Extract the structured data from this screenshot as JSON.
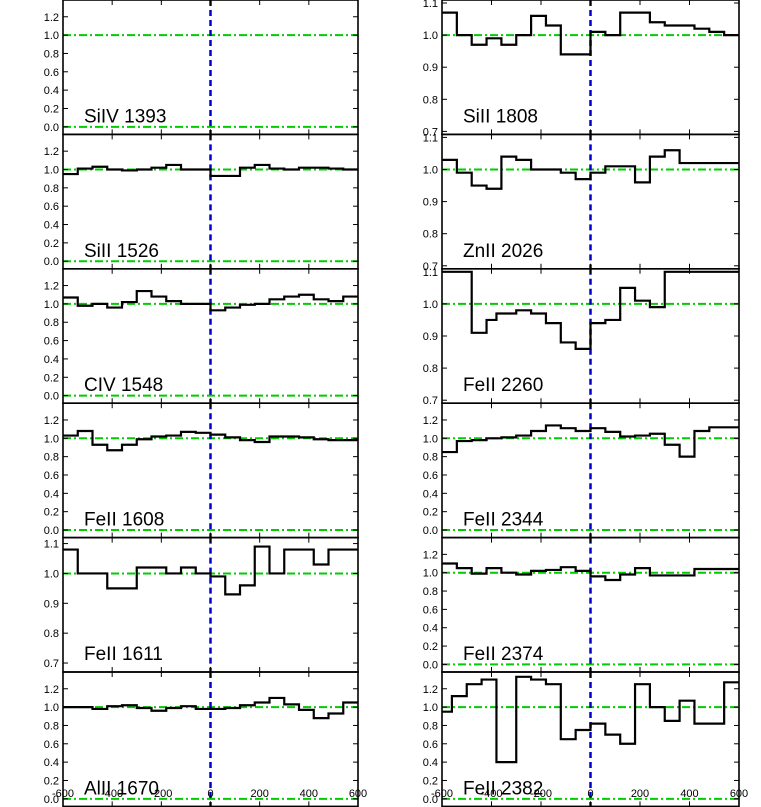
{
  "chart_data": {
    "type": "line",
    "colors": {
      "spectrum": "#000000",
      "zero_velocity": "#0000cc",
      "reference": "#00cc00"
    },
    "x_ticks": [
      "-600",
      "-400",
      "-200",
      "0",
      "200",
      "400",
      "600"
    ],
    "x_values": [
      -600,
      -400,
      -200,
      0,
      200,
      400,
      600
    ],
    "panels": [
      {
        "column": "left",
        "row": 0,
        "label": "SiIV 1393",
        "ylim": [
          -0.05,
          1.35
        ],
        "y_ticks": [
          "0.0",
          "0.2",
          "0.4",
          "0.6",
          "0.8",
          "1.0",
          "1.2"
        ],
        "y_tick_values": [
          0,
          0.2,
          0.4,
          0.6,
          0.8,
          1.0,
          1.2
        ],
        "ref_lines": [
          0.0,
          1.0
        ],
        "x": [],
        "y": []
      },
      {
        "column": "left",
        "row": 1,
        "label": "SiII 1526",
        "ylim": [
          -0.05,
          1.35
        ],
        "y_ticks": [
          "0.0",
          "0.2",
          "0.4",
          "0.6",
          "0.8",
          "1.0",
          "1.2"
        ],
        "y_tick_values": [
          0,
          0.2,
          0.4,
          0.6,
          0.8,
          1.0,
          1.2
        ],
        "ref_lines": [
          0.0,
          1.0
        ],
        "x": [
          -600,
          -540,
          -480,
          -420,
          -360,
          -300,
          -240,
          -180,
          -120,
          -60,
          0,
          60,
          120,
          180,
          240,
          300,
          360,
          420,
          480,
          540,
          600
        ],
        "y": [
          0.95,
          1.01,
          1.03,
          1.0,
          0.99,
          1.0,
          1.02,
          1.05,
          1.0,
          1.0,
          0.93,
          0.93,
          1.02,
          1.05,
          1.01,
          1.0,
          1.02,
          1.02,
          1.01,
          1.0,
          1.0
        ]
      },
      {
        "column": "left",
        "row": 2,
        "label": "CIV 1548",
        "ylim": [
          -0.05,
          1.35
        ],
        "y_ticks": [
          "0.0",
          "0.2",
          "0.4",
          "0.6",
          "0.8",
          "1.0",
          "1.2"
        ],
        "y_tick_values": [
          0,
          0.2,
          0.4,
          0.6,
          0.8,
          1.0,
          1.2
        ],
        "ref_lines": [
          0.0,
          1.0
        ],
        "x": [
          -600,
          -540,
          -480,
          -420,
          -360,
          -300,
          -240,
          -180,
          -120,
          -60,
          0,
          60,
          120,
          180,
          240,
          300,
          360,
          420,
          480,
          540,
          600
        ],
        "y": [
          1.07,
          0.98,
          1.0,
          0.96,
          1.02,
          1.14,
          1.08,
          1.03,
          1.0,
          1.0,
          0.93,
          0.96,
          0.99,
          1.0,
          1.05,
          1.08,
          1.1,
          1.05,
          1.03,
          1.08,
          1.08
        ]
      },
      {
        "column": "left",
        "row": 3,
        "label": "FeII 1608",
        "ylim": [
          -0.05,
          1.35
        ],
        "y_ticks": [
          "0.0",
          "0.2",
          "0.4",
          "0.6",
          "0.8",
          "1.0",
          "1.2"
        ],
        "y_tick_values": [
          0,
          0.2,
          0.4,
          0.6,
          0.8,
          1.0,
          1.2
        ],
        "ref_lines": [
          0.0,
          1.0
        ],
        "x": [
          -600,
          -540,
          -480,
          -420,
          -360,
          -300,
          -240,
          -180,
          -120,
          -60,
          0,
          60,
          120,
          180,
          240,
          300,
          360,
          420,
          480,
          540,
          600
        ],
        "y": [
          1.03,
          1.08,
          0.93,
          0.87,
          0.93,
          0.99,
          1.02,
          1.03,
          1.07,
          1.06,
          1.04,
          1.01,
          0.98,
          0.96,
          1.02,
          1.02,
          1.01,
          0.99,
          0.98,
          0.98,
          0.98
        ]
      },
      {
        "column": "left",
        "row": 4,
        "label": "FeII 1611",
        "ylim": [
          0.68,
          1.11
        ],
        "y_ticks": [
          "0.7",
          "0.8",
          "0.9",
          "1.0",
          "1.1"
        ],
        "y_tick_values": [
          0.7,
          0.8,
          0.9,
          1.0,
          1.1
        ],
        "ref_lines": [
          1.0
        ],
        "x": [
          -600,
          -540,
          -480,
          -420,
          -360,
          -300,
          -240,
          -180,
          -120,
          -60,
          0,
          60,
          120,
          180,
          240,
          300,
          360,
          420,
          480,
          540,
          600
        ],
        "y": [
          1.08,
          1.0,
          1.0,
          0.95,
          0.95,
          1.02,
          1.02,
          1.0,
          1.02,
          1.0,
          0.99,
          0.93,
          0.96,
          1.09,
          1.0,
          1.08,
          1.08,
          1.03,
          1.08,
          1.08,
          1.08
        ]
      },
      {
        "column": "left",
        "row": 5,
        "label": "AlII 1670",
        "ylim": [
          -0.05,
          1.35
        ],
        "y_ticks": [
          "0.0",
          "0.2",
          "0.4",
          "0.6",
          "0.8",
          "1.0",
          "1.2"
        ],
        "y_tick_values": [
          0,
          0.2,
          0.4,
          0.6,
          0.8,
          1.0,
          1.2
        ],
        "ref_lines": [
          0.0,
          1.0
        ],
        "x": [
          -600,
          -540,
          -480,
          -420,
          -360,
          -300,
          -240,
          -180,
          -120,
          -60,
          0,
          60,
          120,
          180,
          240,
          300,
          360,
          420,
          480,
          540,
          600
        ],
        "y": [
          1.0,
          1.0,
          0.98,
          1.01,
          1.02,
          0.99,
          0.96,
          0.99,
          1.01,
          0.98,
          0.98,
          0.99,
          1.02,
          1.05,
          1.1,
          1.03,
          0.97,
          0.88,
          0.93,
          1.05,
          1.05
        ]
      },
      {
        "column": "right",
        "row": 0,
        "label": "SiII 1808",
        "ylim": [
          0.7,
          1.1
        ],
        "y_ticks": [
          "0.7",
          "0.8",
          "0.9",
          "1.0",
          "1.1"
        ],
        "y_tick_values": [
          0.7,
          0.8,
          0.9,
          1.0,
          1.1
        ],
        "ref_lines": [
          1.0
        ],
        "x": [
          -600,
          -540,
          -480,
          -420,
          -360,
          -300,
          -240,
          -180,
          -120,
          -60,
          0,
          60,
          120,
          180,
          240,
          300,
          360,
          420,
          480,
          540,
          600
        ],
        "y": [
          1.07,
          1.0,
          0.97,
          0.99,
          0.97,
          1.0,
          1.06,
          1.03,
          0.94,
          0.94,
          1.01,
          1.0,
          1.07,
          1.07,
          1.04,
          1.03,
          1.03,
          1.02,
          1.01,
          1.0,
          1.0
        ]
      },
      {
        "column": "right",
        "row": 1,
        "label": "ZnII 2026",
        "ylim": [
          0.7,
          1.1
        ],
        "y_ticks": [
          "0.7",
          "0.8",
          "0.9",
          "1.0",
          "1.1"
        ],
        "y_tick_values": [
          0.7,
          0.8,
          0.9,
          1.0,
          1.1
        ],
        "ref_lines": [
          1.0
        ],
        "x": [
          -600,
          -540,
          -480,
          -420,
          -360,
          -300,
          -240,
          -180,
          -120,
          -60,
          0,
          60,
          120,
          180,
          240,
          300,
          360,
          420,
          480,
          540,
          600
        ],
        "y": [
          1.03,
          0.99,
          0.95,
          0.94,
          1.04,
          1.03,
          1.0,
          1.0,
          0.99,
          0.97,
          0.99,
          1.01,
          1.01,
          0.96,
          1.04,
          1.06,
          1.02,
          1.02,
          1.02,
          1.02,
          1.02
        ]
      },
      {
        "column": "right",
        "row": 2,
        "label": "FeII 2260",
        "ylim": [
          0.7,
          1.1
        ],
        "y_ticks": [
          "0.7",
          "0.8",
          "0.9",
          "1.0",
          "1.1"
        ],
        "y_tick_values": [
          0.7,
          0.8,
          0.9,
          1.0,
          1.1
        ],
        "ref_lines": [
          1.0
        ],
        "x": [
          -600,
          -520,
          -480,
          -420,
          -380,
          -300,
          -240,
          -180,
          -120,
          -60,
          0,
          60,
          120,
          180,
          240,
          300,
          360,
          420,
          480,
          540,
          600
        ],
        "y": [
          1.1,
          1.1,
          0.91,
          0.95,
          0.97,
          0.98,
          0.97,
          0.94,
          0.88,
          0.86,
          0.94,
          0.95,
          1.05,
          1.01,
          0.99,
          1.1,
          1.1,
          1.1,
          1.1,
          1.1,
          1.1
        ]
      },
      {
        "column": "right",
        "row": 3,
        "label": "FeII 2344",
        "ylim": [
          -0.05,
          1.35
        ],
        "y_ticks": [
          "0.0",
          "0.2",
          "0.4",
          "0.6",
          "0.8",
          "1.0",
          "1.2"
        ],
        "y_tick_values": [
          0,
          0.2,
          0.4,
          0.6,
          0.8,
          1.0,
          1.2
        ],
        "ref_lines": [
          0.0,
          1.0
        ],
        "x": [
          -600,
          -540,
          -480,
          -420,
          -360,
          -300,
          -240,
          -180,
          -120,
          -60,
          0,
          60,
          120,
          180,
          240,
          300,
          360,
          420,
          480,
          540,
          600
        ],
        "y": [
          0.85,
          0.97,
          0.98,
          1.0,
          1.01,
          1.03,
          1.08,
          1.14,
          1.11,
          1.08,
          1.11,
          1.07,
          1.02,
          1.03,
          1.05,
          0.93,
          0.8,
          1.08,
          1.12,
          1.12,
          1.12
        ]
      },
      {
        "column": "right",
        "row": 4,
        "label": "FeII 2374",
        "ylim": [
          -0.05,
          1.35
        ],
        "y_ticks": [
          "0.0",
          "0.2",
          "0.4",
          "0.6",
          "0.8",
          "1.0",
          "1.2"
        ],
        "y_tick_values": [
          0,
          0.2,
          0.4,
          0.6,
          0.8,
          1.0,
          1.2
        ],
        "ref_lines": [
          0.0,
          1.0
        ],
        "x": [
          -600,
          -540,
          -480,
          -420,
          -360,
          -300,
          -240,
          -180,
          -120,
          -60,
          0,
          60,
          120,
          180,
          240,
          300,
          360,
          420,
          480,
          540,
          600
        ],
        "y": [
          1.1,
          1.05,
          0.99,
          1.05,
          1.0,
          0.98,
          1.02,
          1.03,
          1.06,
          1.02,
          0.96,
          0.92,
          0.98,
          1.05,
          0.97,
          0.97,
          0.97,
          1.04,
          1.04,
          1.04,
          1.04
        ]
      },
      {
        "column": "right",
        "row": 5,
        "label": "FeII 2382",
        "ylim": [
          -0.05,
          1.35
        ],
        "y_ticks": [
          "0.0",
          "0.2",
          "0.4",
          "0.6",
          "0.8",
          "1.0",
          "1.2"
        ],
        "y_tick_values": [
          0,
          0.2,
          0.4,
          0.6,
          0.8,
          1.0,
          1.2
        ],
        "ref_lines": [
          0.0,
          1.0
        ],
        "x": [
          -600,
          -560,
          -500,
          -440,
          -380,
          -300,
          -240,
          -180,
          -120,
          -60,
          0,
          60,
          120,
          180,
          240,
          300,
          360,
          420,
          480,
          540,
          600
        ],
        "y": [
          0.95,
          1.12,
          1.25,
          1.3,
          0.4,
          1.33,
          1.3,
          1.25,
          0.65,
          0.75,
          0.82,
          0.7,
          0.6,
          1.25,
          1.0,
          0.85,
          1.07,
          0.82,
          0.82,
          1.27,
          1.27
        ]
      }
    ]
  }
}
